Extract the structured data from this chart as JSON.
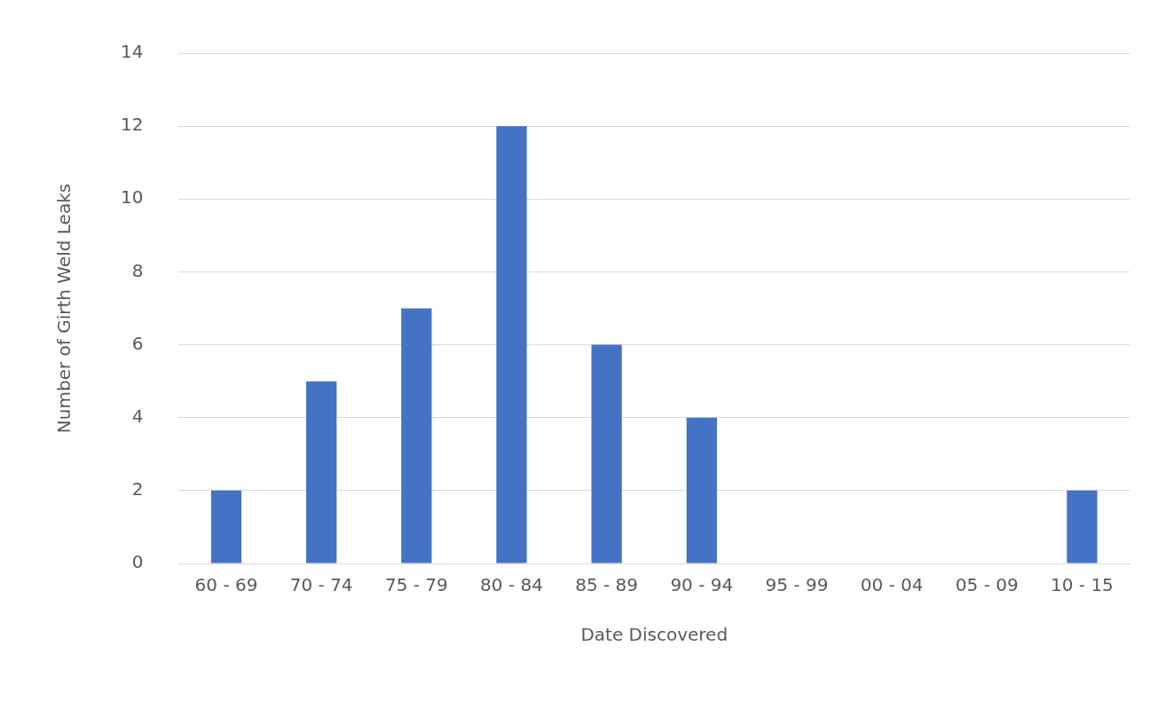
{
  "chart_data": {
    "type": "bar",
    "xlabel": "Date Discovered",
    "ylabel": "Number of Girth Weld Leaks",
    "categories": [
      "60 - 69",
      "70 - 74",
      "75 - 79",
      "80 - 84",
      "85 - 89",
      "90 - 94",
      "95 - 99",
      "00 - 04",
      "05 - 09",
      "10 - 15"
    ],
    "values": [
      2,
      5,
      7,
      12,
      6,
      4,
      0,
      0,
      0,
      2
    ],
    "color": "#4472c4",
    "ylim": [
      0,
      14
    ],
    "yticks": [
      0,
      2,
      4,
      6,
      8,
      10,
      12,
      14
    ],
    "grid": "y"
  }
}
